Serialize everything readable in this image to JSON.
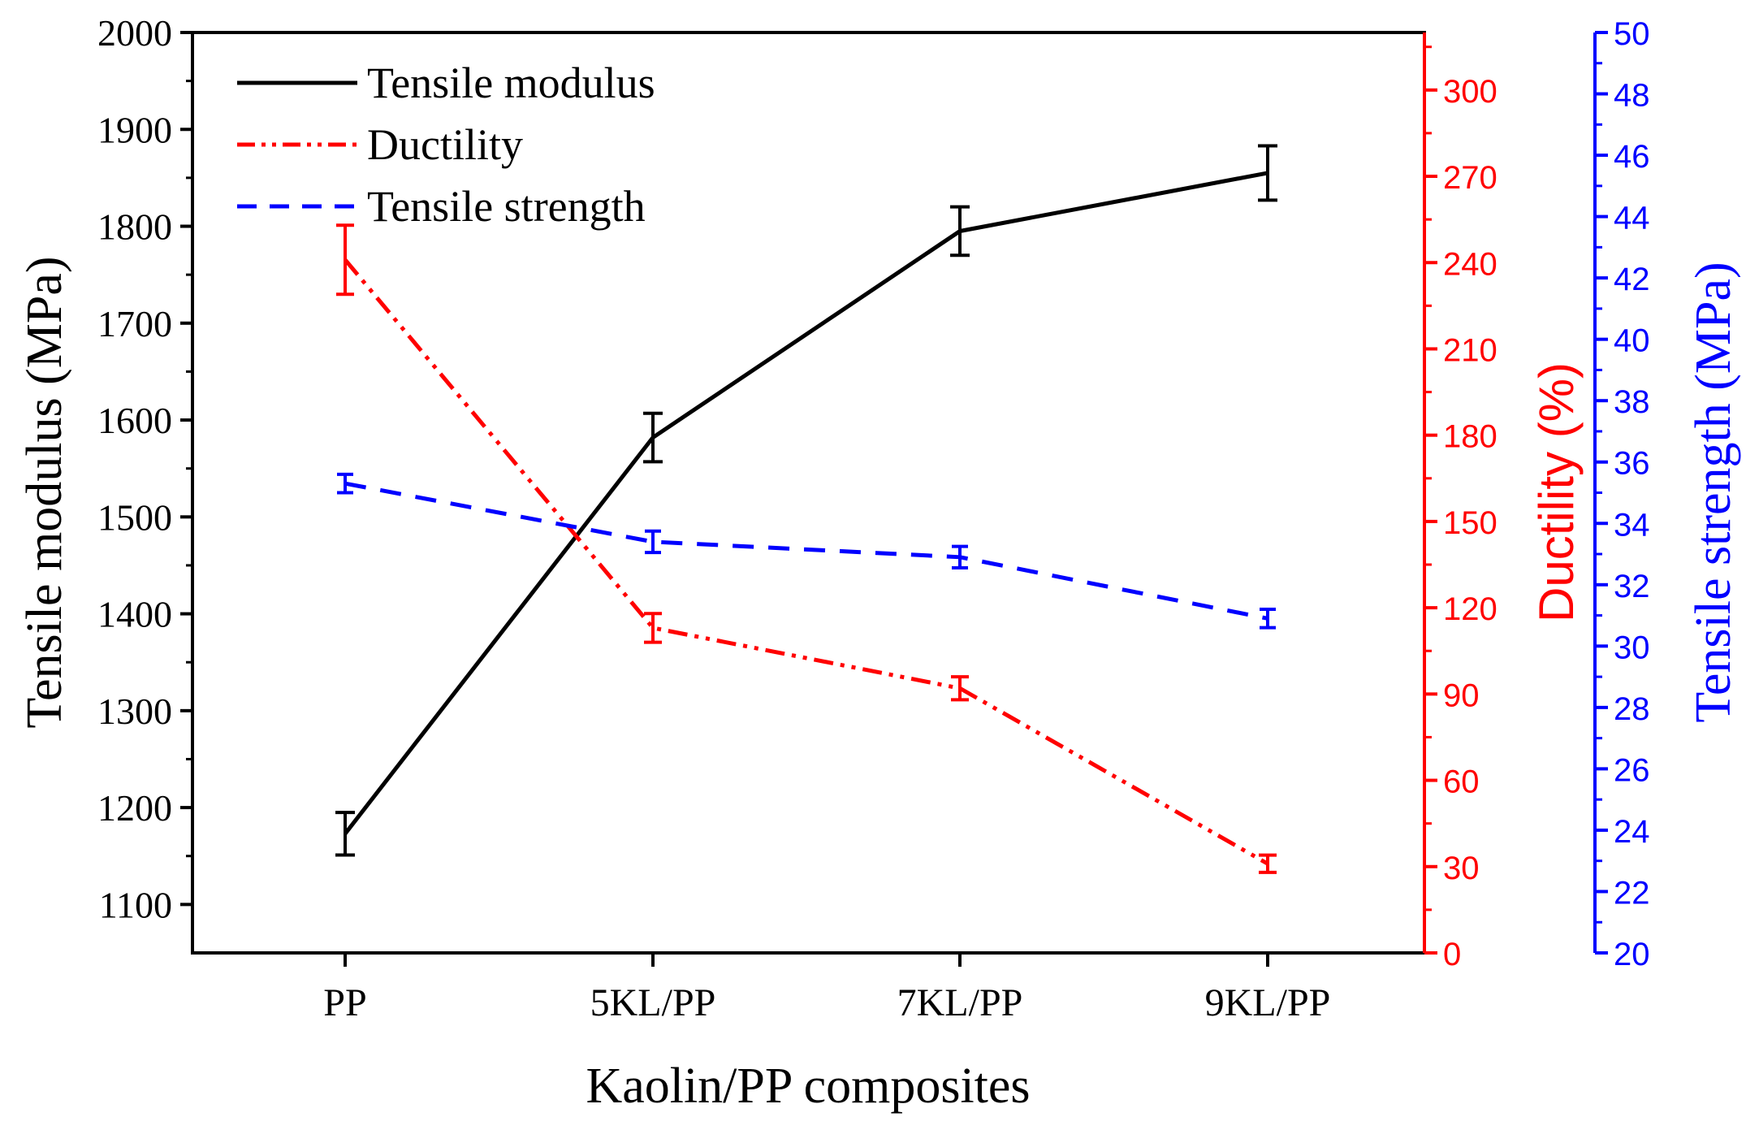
{
  "chart_data": {
    "type": "line",
    "xlabel": "Kaolin/PP composites",
    "categories": [
      "PP",
      "5KL/PP",
      "7KL/PP",
      "9KL/PP"
    ],
    "colors": {
      "modulus": "#000000",
      "ductility": "#ff0000",
      "strength": "#0000ff"
    },
    "axes": {
      "left": {
        "label": "Tensile modulus (MPa)",
        "ylim": [
          1050,
          2000
        ],
        "ticks": [
          1100,
          1200,
          1300,
          1400,
          1500,
          1600,
          1700,
          1800,
          1900,
          2000
        ]
      },
      "right1": {
        "label": "Ductility (%)",
        "ylim": [
          0,
          320
        ],
        "ticks": [
          0,
          30,
          60,
          90,
          120,
          150,
          180,
          210,
          240,
          270,
          300
        ]
      },
      "right2": {
        "label": "Tensile strength (MPa)",
        "ylim": [
          20,
          50
        ],
        "ticks": [
          20,
          22,
          24,
          26,
          28,
          30,
          32,
          34,
          36,
          38,
          40,
          42,
          44,
          46,
          48,
          50
        ]
      }
    },
    "series": [
      {
        "name": "Tensile modulus",
        "axis": "left",
        "style": "solid",
        "color": "#000000",
        "values": [
          1173,
          1582,
          1795,
          1855
        ],
        "errors": [
          22,
          25,
          25,
          28
        ]
      },
      {
        "name": "Ductility",
        "axis": "right1",
        "style": "dashdotdot",
        "color": "#ff0000",
        "values": [
          241,
          113,
          92,
          31
        ],
        "errors": [
          12,
          5,
          4,
          3
        ]
      },
      {
        "name": "Tensile strength",
        "axis": "right2",
        "style": "dashed",
        "color": "#0000ff",
        "values": [
          35.3,
          33.4,
          32.9,
          30.9
        ],
        "errors": [
          0.3,
          0.35,
          0.35,
          0.3
        ]
      }
    ],
    "legend": {
      "placement": "top-left",
      "entries": [
        "Tensile modulus",
        "Ductility",
        "Tensile strength"
      ]
    }
  }
}
